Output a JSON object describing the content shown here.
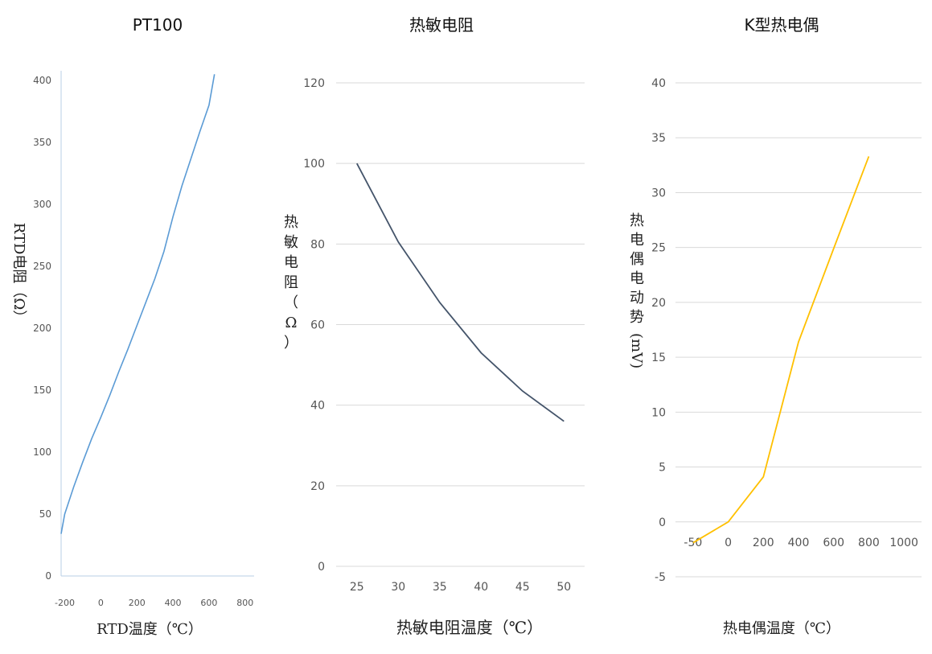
{
  "chart_data": [
    {
      "type": "line",
      "title": "PT100",
      "xlabel": "RTD温度（℃）",
      "ylabel": "RTD电阻（Ω）",
      "x_ticks": [
        "-200",
        "0",
        "200",
        "400",
        "600",
        "800"
      ],
      "y_ticks": [
        "0",
        "50",
        "100",
        "150",
        "200",
        "250",
        "300",
        "350",
        "400"
      ],
      "xlim": [
        -220,
        850
      ],
      "ylim": [
        0,
        400
      ],
      "grid": false,
      "color": "#5B9BD5",
      "series": [
        {
          "x": [
            -220,
            -200,
            -150,
            -100,
            -50,
            0,
            50,
            100,
            150,
            200,
            250,
            300,
            350,
            400,
            450,
            500,
            550,
            600,
            630
          ],
          "y": [
            34,
            50,
            72,
            92,
            111,
            128,
            146,
            165,
            183,
            202,
            221,
            240,
            262,
            290,
            315,
            337,
            359,
            380,
            405
          ]
        }
      ]
    },
    {
      "type": "line",
      "title": "热敏电阻",
      "xlabel": "热敏电阻温度（℃）",
      "ylabel": "热敏电阻（Ω）",
      "x_ticks": [
        "25",
        "30",
        "35",
        "40",
        "45",
        "50"
      ],
      "y_ticks": [
        "0",
        "20",
        "40",
        "60",
        "80",
        "100",
        "120"
      ],
      "ylim": [
        0,
        120
      ],
      "grid": true,
      "color": "#44546A",
      "series": [
        {
          "x": [
            25,
            30,
            35,
            40,
            45,
            50
          ],
          "y": [
            100,
            80.5,
            65.5,
            53,
            43.5,
            36
          ]
        }
      ]
    },
    {
      "type": "line",
      "title": "K型热电偶",
      "xlabel": "热电偶温度（℃）",
      "ylabel": "热电偶电动势(mV)",
      "x_ticks": [
        "-50",
        "0",
        "200",
        "400",
        "600",
        "800",
        "1000"
      ],
      "y_ticks": [
        "-5",
        "0",
        "5",
        "10",
        "15",
        "20",
        "25",
        "30",
        "35",
        "40"
      ],
      "ylim": [
        -5,
        40
      ],
      "grid": true,
      "color": "#FFC000",
      "series": [
        {
          "x": [
            "-50",
            "0",
            "200",
            "400",
            "600",
            "800"
          ],
          "y": [
            -1.9,
            0,
            4.1,
            16.4,
            24.9,
            33.3
          ]
        }
      ]
    }
  ]
}
